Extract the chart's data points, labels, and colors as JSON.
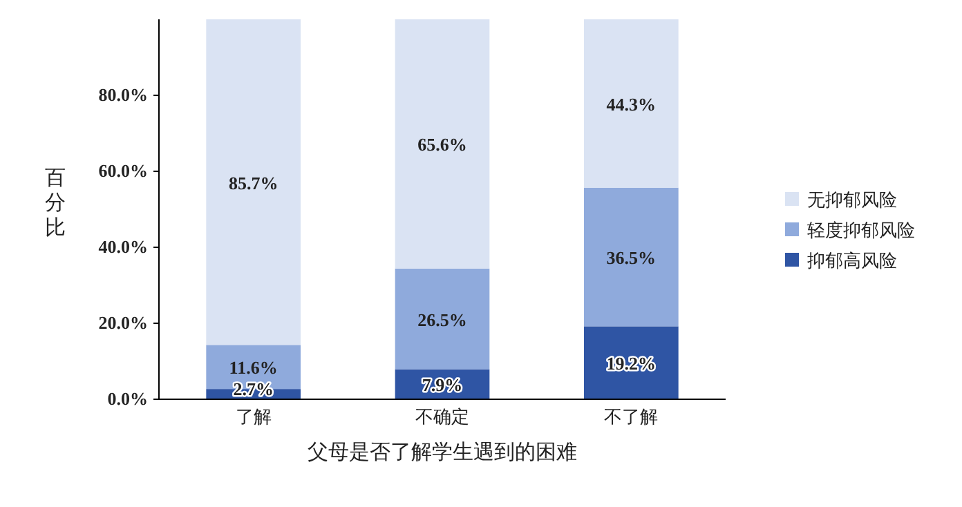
{
  "chart_data": {
    "type": "bar",
    "stacked": true,
    "xlabel": "父母是否了解学生遇到的困难",
    "ylabel": "百分比",
    "categories": [
      "了解",
      "不确定",
      "不了解"
    ],
    "series": [
      {
        "name": "抑郁高风险",
        "color": "#2f55a4",
        "values": [
          2.7,
          7.9,
          19.2
        ],
        "value_labels": [
          "2.7%",
          "7.9%",
          "19.2%"
        ]
      },
      {
        "name": "轻度抑郁风险",
        "color": "#8faadc",
        "values": [
          11.6,
          26.5,
          36.5
        ],
        "value_labels": [
          "11.6%",
          "26.5%",
          "36.5%"
        ]
      },
      {
        "name": "无抑郁风险",
        "color": "#dae3f3",
        "values": [
          85.7,
          65.6,
          44.3
        ],
        "value_labels": [
          "85.7%",
          "65.6%",
          "44.3%"
        ]
      }
    ],
    "ylim": [
      0,
      100
    ],
    "yticks": [
      {
        "value": 0,
        "label": "0.0%"
      },
      {
        "value": 20,
        "label": "20.0%"
      },
      {
        "value": 40,
        "label": "40.0%"
      },
      {
        "value": 60,
        "label": "60.0%"
      },
      {
        "value": 80,
        "label": "80.0%"
      }
    ],
    "legend": "right"
  }
}
